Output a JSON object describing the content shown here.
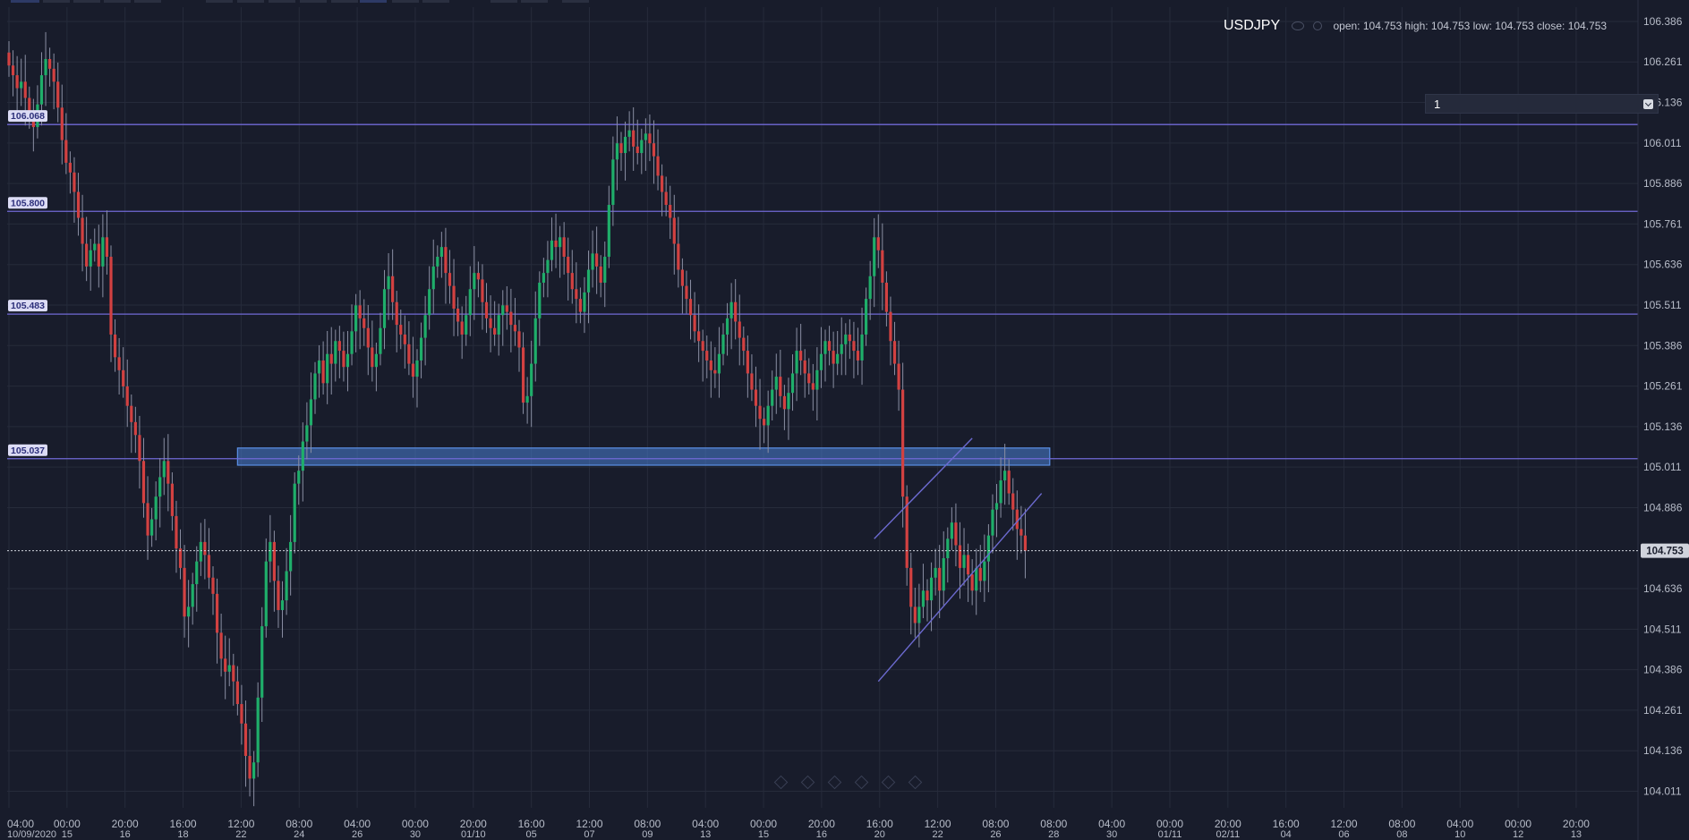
{
  "legend": {
    "symbol": "USDJPY",
    "ohlc": "open: 104.753 high: 104.753 low: 104.753 close: 104.753"
  },
  "interval_select": {
    "value": "1"
  },
  "chart_data": {
    "type": "candlestick",
    "symbol": "USDJPY",
    "y_ticks": [
      106.386,
      106.261,
      106.136,
      106.011,
      105.886,
      105.761,
      105.636,
      105.511,
      105.386,
      105.261,
      105.136,
      105.011,
      104.886,
      104.636,
      104.511,
      104.386,
      104.261,
      104.136,
      104.011
    ],
    "ylim": [
      103.96,
      106.43
    ],
    "current_price": "104.753",
    "horizontal_levels": [
      {
        "label": "106.068",
        "value": 106.068
      },
      {
        "label": "105.800",
        "value": 105.8
      },
      {
        "label": "105.483",
        "value": 105.483
      },
      {
        "label": "105.037",
        "value": 105.037
      }
    ],
    "x_tick_labels": [
      {
        "time": "04:00",
        "date": "10/09/2020"
      },
      {
        "time": "00:00",
        "date": "15"
      },
      {
        "time": "20:00",
        "date": "16"
      },
      {
        "time": "16:00",
        "date": "18"
      },
      {
        "time": "12:00",
        "date": "22"
      },
      {
        "time": "08:00",
        "date": "24"
      },
      {
        "time": "04:00",
        "date": "26"
      },
      {
        "time": "00:00",
        "date": "30"
      },
      {
        "time": "20:00",
        "date": "01/10"
      },
      {
        "time": "16:00",
        "date": "05"
      },
      {
        "time": "12:00",
        "date": "07"
      },
      {
        "time": "08:00",
        "date": "09"
      },
      {
        "time": "04:00",
        "date": "13"
      },
      {
        "time": "00:00",
        "date": "15"
      },
      {
        "time": "20:00",
        "date": "16"
      },
      {
        "time": "16:00",
        "date": "20"
      },
      {
        "time": "12:00",
        "date": "22"
      },
      {
        "time": "08:00",
        "date": "26"
      },
      {
        "time": "08:00",
        "date": "28"
      },
      {
        "time": "04:00",
        "date": "30"
      },
      {
        "time": "00:00",
        "date": "01/11"
      },
      {
        "time": "20:00",
        "date": "02/11"
      },
      {
        "time": "16:00",
        "date": "04"
      },
      {
        "time": "12:00",
        "date": "06"
      },
      {
        "time": "08:00",
        "date": "08"
      },
      {
        "time": "04:00",
        "date": "10"
      },
      {
        "time": "00:00",
        "date": "12"
      },
      {
        "time": "20:00",
        "date": "13"
      }
    ],
    "candle_closes": [
      106.25,
      106.22,
      106.18,
      106.2,
      106.15,
      106.1,
      106.06,
      106.13,
      106.22,
      106.27,
      106.24,
      106.2,
      106.12,
      106.02,
      105.95,
      105.92,
      105.86,
      105.78,
      105.7,
      105.63,
      105.68,
      105.7,
      105.63,
      105.72,
      105.66,
      105.42,
      105.35,
      105.31,
      105.26,
      105.2,
      105.15,
      105.11,
      105.03,
      104.9,
      104.8,
      104.85,
      104.92,
      104.98,
      105.03,
      104.96,
      104.86,
      104.76,
      104.7,
      104.55,
      104.58,
      104.65,
      104.72,
      104.78,
      104.74,
      104.67,
      104.62,
      104.5,
      104.42,
      104.38,
      104.4,
      104.35,
      104.28,
      104.22,
      104.12,
      104.05,
      104.1,
      104.3,
      104.52,
      104.72,
      104.78,
      104.66,
      104.57,
      104.6,
      104.69,
      104.78,
      104.96,
      105.0,
      105.09,
      105.14,
      105.22,
      105.3,
      105.34,
      105.27,
      105.36,
      105.33,
      105.4,
      105.37,
      105.32,
      105.36,
      105.43,
      105.51,
      105.47,
      105.44,
      105.38,
      105.32,
      105.36,
      105.44,
      105.56,
      105.6,
      105.52,
      105.45,
      105.42,
      105.39,
      105.33,
      105.29,
      105.34,
      105.41,
      105.48,
      105.56,
      105.63,
      105.66,
      105.69,
      105.61,
      105.57,
      105.5,
      105.46,
      105.42,
      105.48,
      105.56,
      105.61,
      105.59,
      105.52,
      105.47,
      105.44,
      105.42,
      105.48,
      105.51,
      105.49,
      105.45,
      105.43,
      105.38,
      105.21,
      105.23,
      105.33,
      105.47,
      105.58,
      105.61,
      105.65,
      105.71,
      105.69,
      105.72,
      105.66,
      105.61,
      105.56,
      105.53,
      105.49,
      105.55,
      105.62,
      105.67,
      105.63,
      105.58,
      105.66,
      105.82,
      105.96,
      106.01,
      105.98,
      106.03,
      106.05,
      106.0,
      105.98,
      106.02,
      106.04,
      106.01,
      105.97,
      105.91,
      105.86,
      105.82,
      105.78,
      105.7,
      105.62,
      105.57,
      105.53,
      105.48,
      105.43,
      105.4,
      105.37,
      105.34,
      105.31,
      105.3,
      105.36,
      105.42,
      105.47,
      105.52,
      105.46,
      105.41,
      105.37,
      105.3,
      105.25,
      105.2,
      105.16,
      105.14,
      105.2,
      105.25,
      105.29,
      105.23,
      105.19,
      105.24,
      105.3,
      105.37,
      105.34,
      105.3,
      105.27,
      105.25,
      105.31,
      105.36,
      105.4,
      105.37,
      105.33,
      105.36,
      105.39,
      105.42,
      105.4,
      105.37,
      105.34,
      105.42,
      105.53,
      105.6,
      105.72,
      105.68,
      105.58,
      105.49,
      105.4,
      105.33,
      105.25,
      104.92,
      104.7,
      104.58,
      104.53,
      104.58,
      104.63,
      104.6,
      104.67,
      104.7,
      104.63,
      104.73,
      104.79,
      104.84,
      104.77,
      104.7,
      104.74,
      104.68,
      104.63,
      104.7,
      104.66,
      104.72,
      104.8,
      104.88,
      104.9,
      104.97,
      105.0,
      104.93,
      104.88,
      104.82,
      104.8,
      104.753
    ],
    "zones": [
      {
        "type": "rectangle",
        "price_top": 105.07,
        "price_bottom": 105.017,
        "bar_start": 56,
        "bar_end": 255
      }
    ],
    "trendlines": [
      {
        "from": {
          "bar": 212,
          "price": 104.79
        },
        "to": {
          "bar": 236,
          "price": 105.1
        }
      },
      {
        "from": {
          "bar": 213,
          "price": 104.35
        },
        "to": {
          "bar": 253,
          "price": 104.93
        }
      }
    ],
    "grid": true,
    "colors": {
      "up": "#1fae6a",
      "down": "#d24141",
      "level_line": "#7069d6",
      "zone": "#4a7fd4"
    }
  }
}
